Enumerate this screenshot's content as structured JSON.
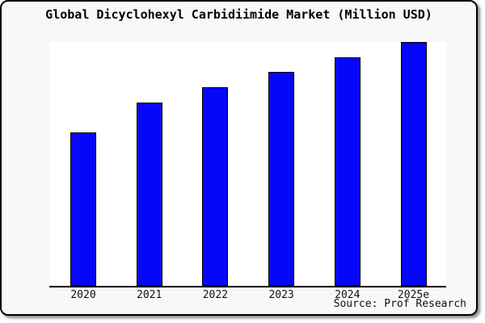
{
  "window": {
    "background_color": "#f8f8f8",
    "frame_border_color": "#000000",
    "plot_background_color": "#ffffff"
  },
  "header": {
    "title": "Global Dicyclohexyl Carbidiimide Market (Million USD)"
  },
  "footer": {
    "source": "Source: Prof Research"
  },
  "chart_data": {
    "type": "bar",
    "title": "Global Dicyclohexyl Carbidiimide Market (Million USD)",
    "categories": [
      "2020",
      "2021",
      "2022",
      "2023",
      "2024",
      "2025e"
    ],
    "values": [
      62.9,
      75.2,
      81.3,
      87.8,
      93.7,
      100
    ],
    "value_note": "chart shows no y-axis ticks; values are relative bar heights normalized to 2025e = 100",
    "xlabel": "",
    "ylabel": "",
    "ylim": [
      0,
      100
    ],
    "grid": false,
    "legend": false,
    "bar_color": "#0606fa",
    "bar_border_color": "#000000",
    "axis_line_color": "#000000",
    "annotation": "Source: Prof Research"
  }
}
